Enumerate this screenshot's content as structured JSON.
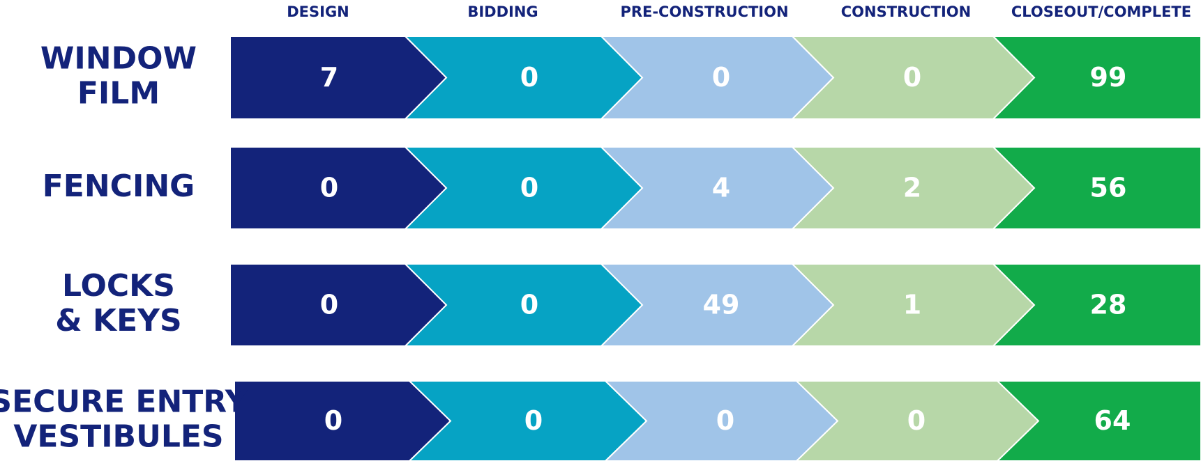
{
  "stages": [
    "DESIGN",
    "BIDDING",
    "PRE-CONSTRUCTION",
    "CONSTRUCTION",
    "CLOSEOUT/COMPLETE"
  ],
  "rows": [
    {
      "label": [
        "WINDOW",
        "FILM"
      ],
      "counts": [
        7,
        0,
        0,
        0,
        99
      ]
    },
    {
      "label": [
        "FENCING"
      ],
      "counts": [
        0,
        0,
        4,
        2,
        56
      ]
    },
    {
      "label": [
        "LOCKS",
        "& KEYS"
      ],
      "counts": [
        0,
        0,
        49,
        1,
        28
      ]
    },
    {
      "label": [
        "SECURE ENTRY",
        "VESTIBULES"
      ],
      "counts": [
        0,
        0,
        0,
        0,
        64
      ]
    }
  ]
}
